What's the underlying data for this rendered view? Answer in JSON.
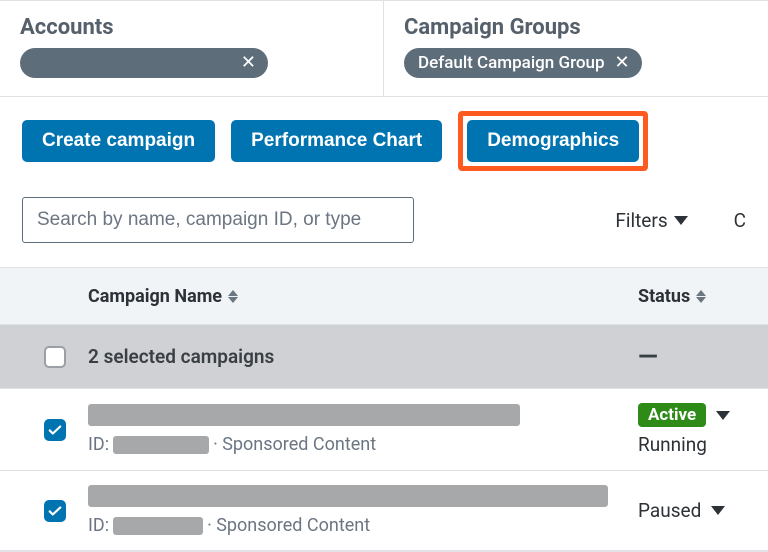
{
  "top": {
    "accounts_label": "Accounts",
    "groups_label": "Campaign Groups",
    "group_pill": "Default Campaign Group"
  },
  "buttons": {
    "create": "Create campaign",
    "chart": "Performance Chart",
    "demographics": "Demographics"
  },
  "search": {
    "placeholder": "Search by name, campaign ID, or type",
    "filters_label": "Filters",
    "right_trunc": "C"
  },
  "headers": {
    "name": "Campaign Name",
    "status": "Status"
  },
  "summary": {
    "text": "2 selected campaigns",
    "status": "—"
  },
  "rows": [
    {
      "id_prefix": "ID:",
      "type_suffix": "· Sponsored Content",
      "status_badge": "Active",
      "status_badge_color": "#2e8b18",
      "sub_status": "Running",
      "checked": true,
      "name_bar_w": 432,
      "id_bar_w": 96
    },
    {
      "id_prefix": "ID:",
      "type_suffix": "· Sponsored Content",
      "status_badge": "",
      "sub_status": "Paused",
      "checked": true,
      "name_bar_w": 520,
      "id_bar_w": 90
    }
  ],
  "colors": {
    "blue": "#0073b1",
    "highlight": "#ff5a1f",
    "pill_bg": "#5e6d7a",
    "redact": "#a7a8aa",
    "green": "#2e8b18"
  }
}
